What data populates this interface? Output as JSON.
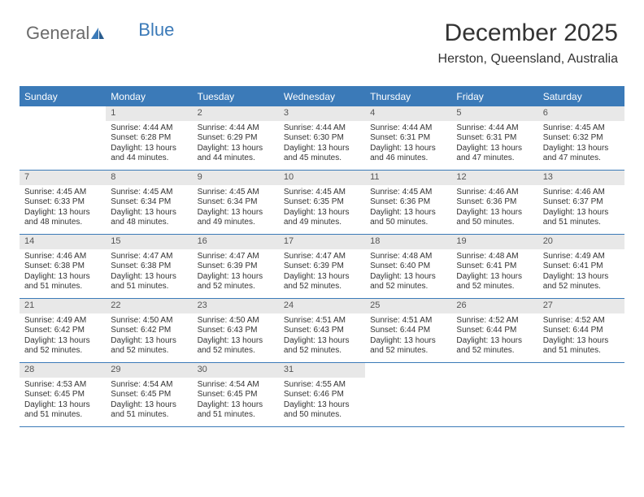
{
  "logo": {
    "part1": "General",
    "part2": "Blue"
  },
  "colors": {
    "accent": "#3b7ab8",
    "header_bg": "#3b7ab8",
    "header_text": "#ffffff",
    "daynum_bg": "#e8e8e8",
    "daynum_text": "#555555",
    "body_text": "#333333",
    "logo_gray": "#6b6b6b",
    "background": "#ffffff"
  },
  "typography": {
    "month_title_fontsize": 30,
    "location_fontsize": 16,
    "dow_fontsize": 12,
    "daynum_fontsize": 11,
    "body_fontsize": 10,
    "logo_fontsize": 22
  },
  "month_title": "December 2025",
  "location": "Herston, Queensland, Australia",
  "days_of_week": [
    "Sunday",
    "Monday",
    "Tuesday",
    "Wednesday",
    "Thursday",
    "Friday",
    "Saturday"
  ],
  "weeks": [
    [
      {
        "empty": true
      },
      {
        "n": "1",
        "sr": "Sunrise: 4:44 AM",
        "ss": "Sunset: 6:28 PM",
        "d1": "Daylight: 13 hours",
        "d2": "and 44 minutes."
      },
      {
        "n": "2",
        "sr": "Sunrise: 4:44 AM",
        "ss": "Sunset: 6:29 PM",
        "d1": "Daylight: 13 hours",
        "d2": "and 44 minutes."
      },
      {
        "n": "3",
        "sr": "Sunrise: 4:44 AM",
        "ss": "Sunset: 6:30 PM",
        "d1": "Daylight: 13 hours",
        "d2": "and 45 minutes."
      },
      {
        "n": "4",
        "sr": "Sunrise: 4:44 AM",
        "ss": "Sunset: 6:31 PM",
        "d1": "Daylight: 13 hours",
        "d2": "and 46 minutes."
      },
      {
        "n": "5",
        "sr": "Sunrise: 4:44 AM",
        "ss": "Sunset: 6:31 PM",
        "d1": "Daylight: 13 hours",
        "d2": "and 47 minutes."
      },
      {
        "n": "6",
        "sr": "Sunrise: 4:45 AM",
        "ss": "Sunset: 6:32 PM",
        "d1": "Daylight: 13 hours",
        "d2": "and 47 minutes."
      }
    ],
    [
      {
        "n": "7",
        "sr": "Sunrise: 4:45 AM",
        "ss": "Sunset: 6:33 PM",
        "d1": "Daylight: 13 hours",
        "d2": "and 48 minutes."
      },
      {
        "n": "8",
        "sr": "Sunrise: 4:45 AM",
        "ss": "Sunset: 6:34 PM",
        "d1": "Daylight: 13 hours",
        "d2": "and 48 minutes."
      },
      {
        "n": "9",
        "sr": "Sunrise: 4:45 AM",
        "ss": "Sunset: 6:34 PM",
        "d1": "Daylight: 13 hours",
        "d2": "and 49 minutes."
      },
      {
        "n": "10",
        "sr": "Sunrise: 4:45 AM",
        "ss": "Sunset: 6:35 PM",
        "d1": "Daylight: 13 hours",
        "d2": "and 49 minutes."
      },
      {
        "n": "11",
        "sr": "Sunrise: 4:45 AM",
        "ss": "Sunset: 6:36 PM",
        "d1": "Daylight: 13 hours",
        "d2": "and 50 minutes."
      },
      {
        "n": "12",
        "sr": "Sunrise: 4:46 AM",
        "ss": "Sunset: 6:36 PM",
        "d1": "Daylight: 13 hours",
        "d2": "and 50 minutes."
      },
      {
        "n": "13",
        "sr": "Sunrise: 4:46 AM",
        "ss": "Sunset: 6:37 PM",
        "d1": "Daylight: 13 hours",
        "d2": "and 51 minutes."
      }
    ],
    [
      {
        "n": "14",
        "sr": "Sunrise: 4:46 AM",
        "ss": "Sunset: 6:38 PM",
        "d1": "Daylight: 13 hours",
        "d2": "and 51 minutes."
      },
      {
        "n": "15",
        "sr": "Sunrise: 4:47 AM",
        "ss": "Sunset: 6:38 PM",
        "d1": "Daylight: 13 hours",
        "d2": "and 51 minutes."
      },
      {
        "n": "16",
        "sr": "Sunrise: 4:47 AM",
        "ss": "Sunset: 6:39 PM",
        "d1": "Daylight: 13 hours",
        "d2": "and 52 minutes."
      },
      {
        "n": "17",
        "sr": "Sunrise: 4:47 AM",
        "ss": "Sunset: 6:39 PM",
        "d1": "Daylight: 13 hours",
        "d2": "and 52 minutes."
      },
      {
        "n": "18",
        "sr": "Sunrise: 4:48 AM",
        "ss": "Sunset: 6:40 PM",
        "d1": "Daylight: 13 hours",
        "d2": "and 52 minutes."
      },
      {
        "n": "19",
        "sr": "Sunrise: 4:48 AM",
        "ss": "Sunset: 6:41 PM",
        "d1": "Daylight: 13 hours",
        "d2": "and 52 minutes."
      },
      {
        "n": "20",
        "sr": "Sunrise: 4:49 AM",
        "ss": "Sunset: 6:41 PM",
        "d1": "Daylight: 13 hours",
        "d2": "and 52 minutes."
      }
    ],
    [
      {
        "n": "21",
        "sr": "Sunrise: 4:49 AM",
        "ss": "Sunset: 6:42 PM",
        "d1": "Daylight: 13 hours",
        "d2": "and 52 minutes."
      },
      {
        "n": "22",
        "sr": "Sunrise: 4:50 AM",
        "ss": "Sunset: 6:42 PM",
        "d1": "Daylight: 13 hours",
        "d2": "and 52 minutes."
      },
      {
        "n": "23",
        "sr": "Sunrise: 4:50 AM",
        "ss": "Sunset: 6:43 PM",
        "d1": "Daylight: 13 hours",
        "d2": "and 52 minutes."
      },
      {
        "n": "24",
        "sr": "Sunrise: 4:51 AM",
        "ss": "Sunset: 6:43 PM",
        "d1": "Daylight: 13 hours",
        "d2": "and 52 minutes."
      },
      {
        "n": "25",
        "sr": "Sunrise: 4:51 AM",
        "ss": "Sunset: 6:44 PM",
        "d1": "Daylight: 13 hours",
        "d2": "and 52 minutes."
      },
      {
        "n": "26",
        "sr": "Sunrise: 4:52 AM",
        "ss": "Sunset: 6:44 PM",
        "d1": "Daylight: 13 hours",
        "d2": "and 52 minutes."
      },
      {
        "n": "27",
        "sr": "Sunrise: 4:52 AM",
        "ss": "Sunset: 6:44 PM",
        "d1": "Daylight: 13 hours",
        "d2": "and 51 minutes."
      }
    ],
    [
      {
        "n": "28",
        "sr": "Sunrise: 4:53 AM",
        "ss": "Sunset: 6:45 PM",
        "d1": "Daylight: 13 hours",
        "d2": "and 51 minutes."
      },
      {
        "n": "29",
        "sr": "Sunrise: 4:54 AM",
        "ss": "Sunset: 6:45 PM",
        "d1": "Daylight: 13 hours",
        "d2": "and 51 minutes."
      },
      {
        "n": "30",
        "sr": "Sunrise: 4:54 AM",
        "ss": "Sunset: 6:45 PM",
        "d1": "Daylight: 13 hours",
        "d2": "and 51 minutes."
      },
      {
        "n": "31",
        "sr": "Sunrise: 4:55 AM",
        "ss": "Sunset: 6:46 PM",
        "d1": "Daylight: 13 hours",
        "d2": "and 50 minutes."
      },
      {
        "empty": true
      },
      {
        "empty": true
      },
      {
        "empty": true
      }
    ]
  ]
}
